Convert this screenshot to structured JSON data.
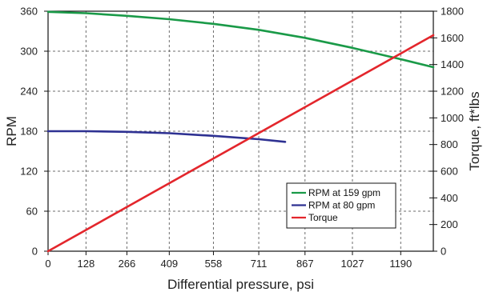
{
  "chart_data": {
    "type": "line",
    "title": "",
    "xlabel": "Differential pressure, psi",
    "ylabel": "RPM",
    "y2label": "Torque, ft*lbs",
    "xlim": [
      0,
      1300
    ],
    "ylim": [
      0,
      360
    ],
    "y2lim": [
      0,
      1800
    ],
    "x_ticks": [
      0,
      128,
      266,
      409,
      558,
      711,
      867,
      1027,
      1190
    ],
    "y_ticks": [
      0,
      60,
      120,
      180,
      240,
      300,
      360
    ],
    "y2_ticks": [
      0,
      200,
      400,
      600,
      800,
      1000,
      1200,
      1400,
      1600,
      1800
    ],
    "grid": true,
    "grid_style": "dashed",
    "legend_position": "bottom-right",
    "series": [
      {
        "name": "RPM at 159 gpm",
        "axis": "left",
        "color": "#1a9a48",
        "x": [
          0,
          128,
          266,
          409,
          558,
          711,
          867,
          1027,
          1190,
          1300
        ],
        "y": [
          359,
          357,
          353,
          348,
          341,
          332,
          320,
          305,
          288,
          276
        ]
      },
      {
        "name": "RPM at 80 gpm",
        "axis": "left",
        "color": "#2e3192",
        "x": [
          0,
          128,
          266,
          409,
          558,
          711,
          800
        ],
        "y": [
          180,
          180,
          179,
          177,
          173,
          168,
          164
        ]
      },
      {
        "name": "Torque",
        "axis": "right",
        "color": "#e3262c",
        "x": [
          0,
          1300
        ],
        "y": [
          0,
          1620
        ]
      }
    ]
  }
}
